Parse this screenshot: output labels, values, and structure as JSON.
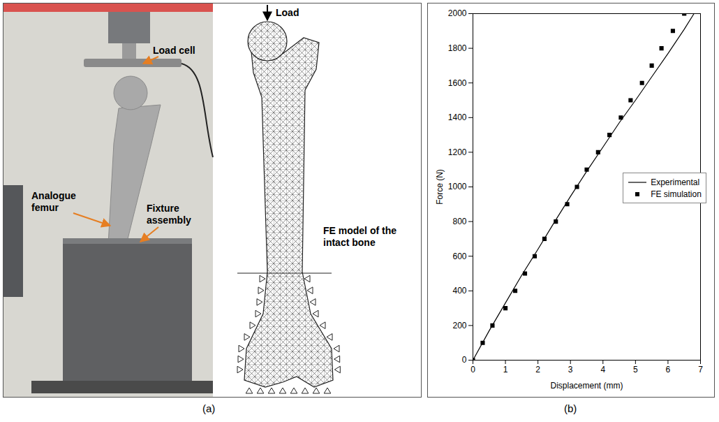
{
  "panel_a": {
    "labels": {
      "load_cell": "Load cell",
      "analogue_femur": "Analogue femur",
      "fixture_assembly": "Fixture assembly",
      "load": "Load",
      "fe_model": "FE model of the intact bone"
    },
    "caption": "(a)"
  },
  "chart_data": {
    "type": "line",
    "caption": "(b)",
    "x_label": "Displacement (mm)",
    "y_label": "Force (N)",
    "xlim": [
      0,
      7
    ],
    "xticks": [
      0,
      1,
      2,
      3,
      4,
      5,
      6,
      7
    ],
    "ylim": [
      0,
      2000
    ],
    "yticks": [
      0,
      200,
      400,
      600,
      800,
      1000,
      1200,
      1400,
      1600,
      1800,
      2000
    ],
    "grid": false,
    "legend": "right",
    "series": [
      {
        "name": "Experimental",
        "type": "line",
        "color": "#000000",
        "line_style": "solid",
        "x": [
          0,
          0.5,
          1,
          1.5,
          2,
          2.5,
          3,
          3.5,
          4,
          4.5,
          5,
          5.5,
          6,
          6.5,
          6.8
        ],
        "values": [
          0,
          170,
          330,
          490,
          640,
          795,
          945,
          1090,
          1230,
          1370,
          1500,
          1635,
          1770,
          1910,
          2000
        ]
      },
      {
        "name": "FE simulation",
        "type": "scatter",
        "color": "#000000",
        "marker": "square",
        "x": [
          0,
          0.3,
          0.6,
          1.0,
          1.3,
          1.6,
          1.9,
          2.2,
          2.55,
          2.9,
          3.2,
          3.5,
          3.85,
          4.2,
          4.55,
          4.85,
          5.2,
          5.5,
          5.8,
          6.15,
          6.5
        ],
        "values": [
          0,
          100,
          200,
          300,
          400,
          500,
          600,
          700,
          800,
          900,
          1000,
          1100,
          1200,
          1300,
          1400,
          1500,
          1600,
          1700,
          1800,
          1900,
          2000
        ]
      }
    ]
  }
}
